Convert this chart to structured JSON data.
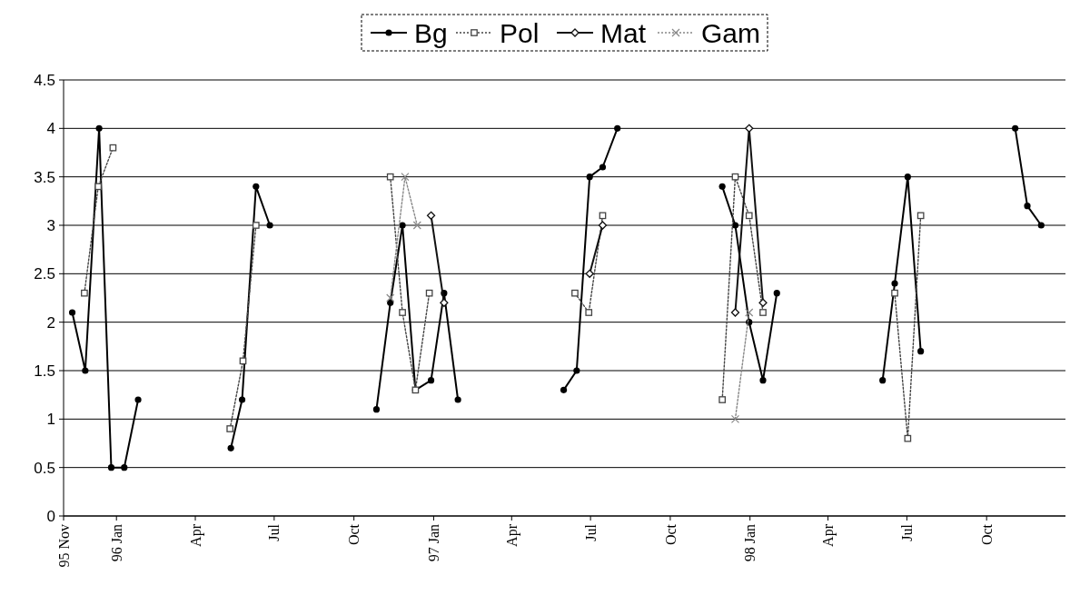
{
  "chart_data": {
    "type": "line",
    "ylim": [
      0,
      4.5
    ],
    "yticks": [
      0,
      0.5,
      1,
      1.5,
      2,
      2.5,
      3,
      3.5,
      4,
      4.5
    ],
    "grid": "y",
    "legend": "top",
    "xlim": [
      "1995-11-01",
      "1998-12-31"
    ],
    "xticks": [
      {
        "value": "1995-11-01",
        "label": "95 Nov"
      },
      {
        "value": "1996-01-01",
        "label": "96 Jan"
      },
      {
        "value": "1996-04-01",
        "label": "Apr"
      },
      {
        "value": "1996-07-01",
        "label": "Jul"
      },
      {
        "value": "1996-10-01",
        "label": "Oct"
      },
      {
        "value": "1997-01-01",
        "label": "97 Jan"
      },
      {
        "value": "1997-04-01",
        "label": "Apr"
      },
      {
        "value": "1997-07-01",
        "label": "Jul"
      },
      {
        "value": "1997-10-01",
        "label": "Oct"
      },
      {
        "value": "1998-01-01",
        "label": "98 Jan"
      },
      {
        "value": "1998-04-01",
        "label": "Apr"
      },
      {
        "value": "1998-07-01",
        "label": "Jul"
      },
      {
        "value": "1998-10-01",
        "label": "Oct"
      }
    ],
    "series": [
      {
        "name": "Bg",
        "color": "#000000",
        "marker": "circle",
        "line_style": "solid",
        "x": [
          "1995-11-11",
          "1995-11-26",
          "1995-12-12",
          "1995-12-26",
          "1996-01-10",
          "1996-01-26",
          "1996-04-01",
          "1996-05-12",
          "1996-05-25",
          "1996-06-10",
          "1996-06-26",
          "1996-09-01",
          "1996-10-27",
          "1996-11-12",
          "1996-11-26",
          "1996-12-11",
          "1996-12-29",
          "1997-01-13",
          "1997-01-29",
          "1997-04-01",
          "1997-05-31",
          "1997-06-15",
          "1997-06-30",
          "1997-07-15",
          "1997-08-01",
          "1997-10-01",
          "1997-11-30",
          "1997-12-15",
          "1997-12-31",
          "1998-01-16",
          "1998-02-01",
          "1998-04-01",
          "1998-06-03",
          "1998-06-17",
          "1998-07-02",
          "1998-07-17",
          "1998-09-15",
          "1998-11-03",
          "1998-11-17",
          "1998-12-03"
        ],
        "values": [
          2.1,
          1.5,
          4.0,
          0.5,
          0.5,
          1.2,
          null,
          0.7,
          1.2,
          3.4,
          3.0,
          null,
          1.1,
          2.2,
          3.0,
          1.3,
          1.4,
          2.3,
          1.2,
          null,
          1.3,
          1.5,
          3.5,
          3.6,
          4.0,
          null,
          3.4,
          3.0,
          2.0,
          1.4,
          2.3,
          null,
          1.4,
          2.4,
          3.5,
          1.7,
          null,
          4.0,
          3.2,
          3.0
        ]
      },
      {
        "name": "Pol",
        "color": "#444444",
        "marker": "square",
        "line_style": "dotted",
        "x": [
          "1995-11-25",
          "1995-12-11",
          "1995-12-28",
          "1996-04-01",
          "1996-05-11",
          "1996-05-26",
          "1996-06-10",
          "1996-09-01",
          "1996-11-12",
          "1996-11-26",
          "1996-12-11",
          "1996-12-27",
          "1997-04-01",
          "1997-06-13",
          "1997-06-29",
          "1997-07-15",
          "1997-10-01",
          "1997-11-30",
          "1997-12-15",
          "1997-12-31",
          "1998-01-16",
          "1998-04-01",
          "1998-06-17",
          "1998-07-02",
          "1998-07-17"
        ],
        "values": [
          2.3,
          3.4,
          3.8,
          null,
          0.9,
          1.6,
          3.0,
          null,
          3.5,
          2.1,
          1.3,
          2.3,
          null,
          2.3,
          2.1,
          3.1,
          null,
          1.2,
          3.5,
          3.1,
          2.1,
          null,
          2.3,
          0.8,
          3.1
        ]
      },
      {
        "name": "Mat",
        "color": "#111111",
        "marker": "diamond",
        "line_style": "solid",
        "x": [
          "1996-12-29",
          "1997-01-13",
          "1997-04-01",
          "1997-06-30",
          "1997-07-15",
          "1997-10-01",
          "1997-12-15",
          "1997-12-31",
          "1998-01-16"
        ],
        "values": [
          3.1,
          2.2,
          null,
          2.5,
          3.0,
          null,
          2.1,
          4.0,
          2.2
        ]
      },
      {
        "name": "Gam",
        "color": "#888888",
        "marker": "cross",
        "line_style": "dotted",
        "x": [
          "1996-11-12",
          "1996-11-29",
          "1996-12-13",
          "1997-10-01",
          "1997-12-15",
          "1997-12-31"
        ],
        "values": [
          2.25,
          3.5,
          3.0,
          null,
          1.0,
          2.1
        ]
      }
    ]
  }
}
